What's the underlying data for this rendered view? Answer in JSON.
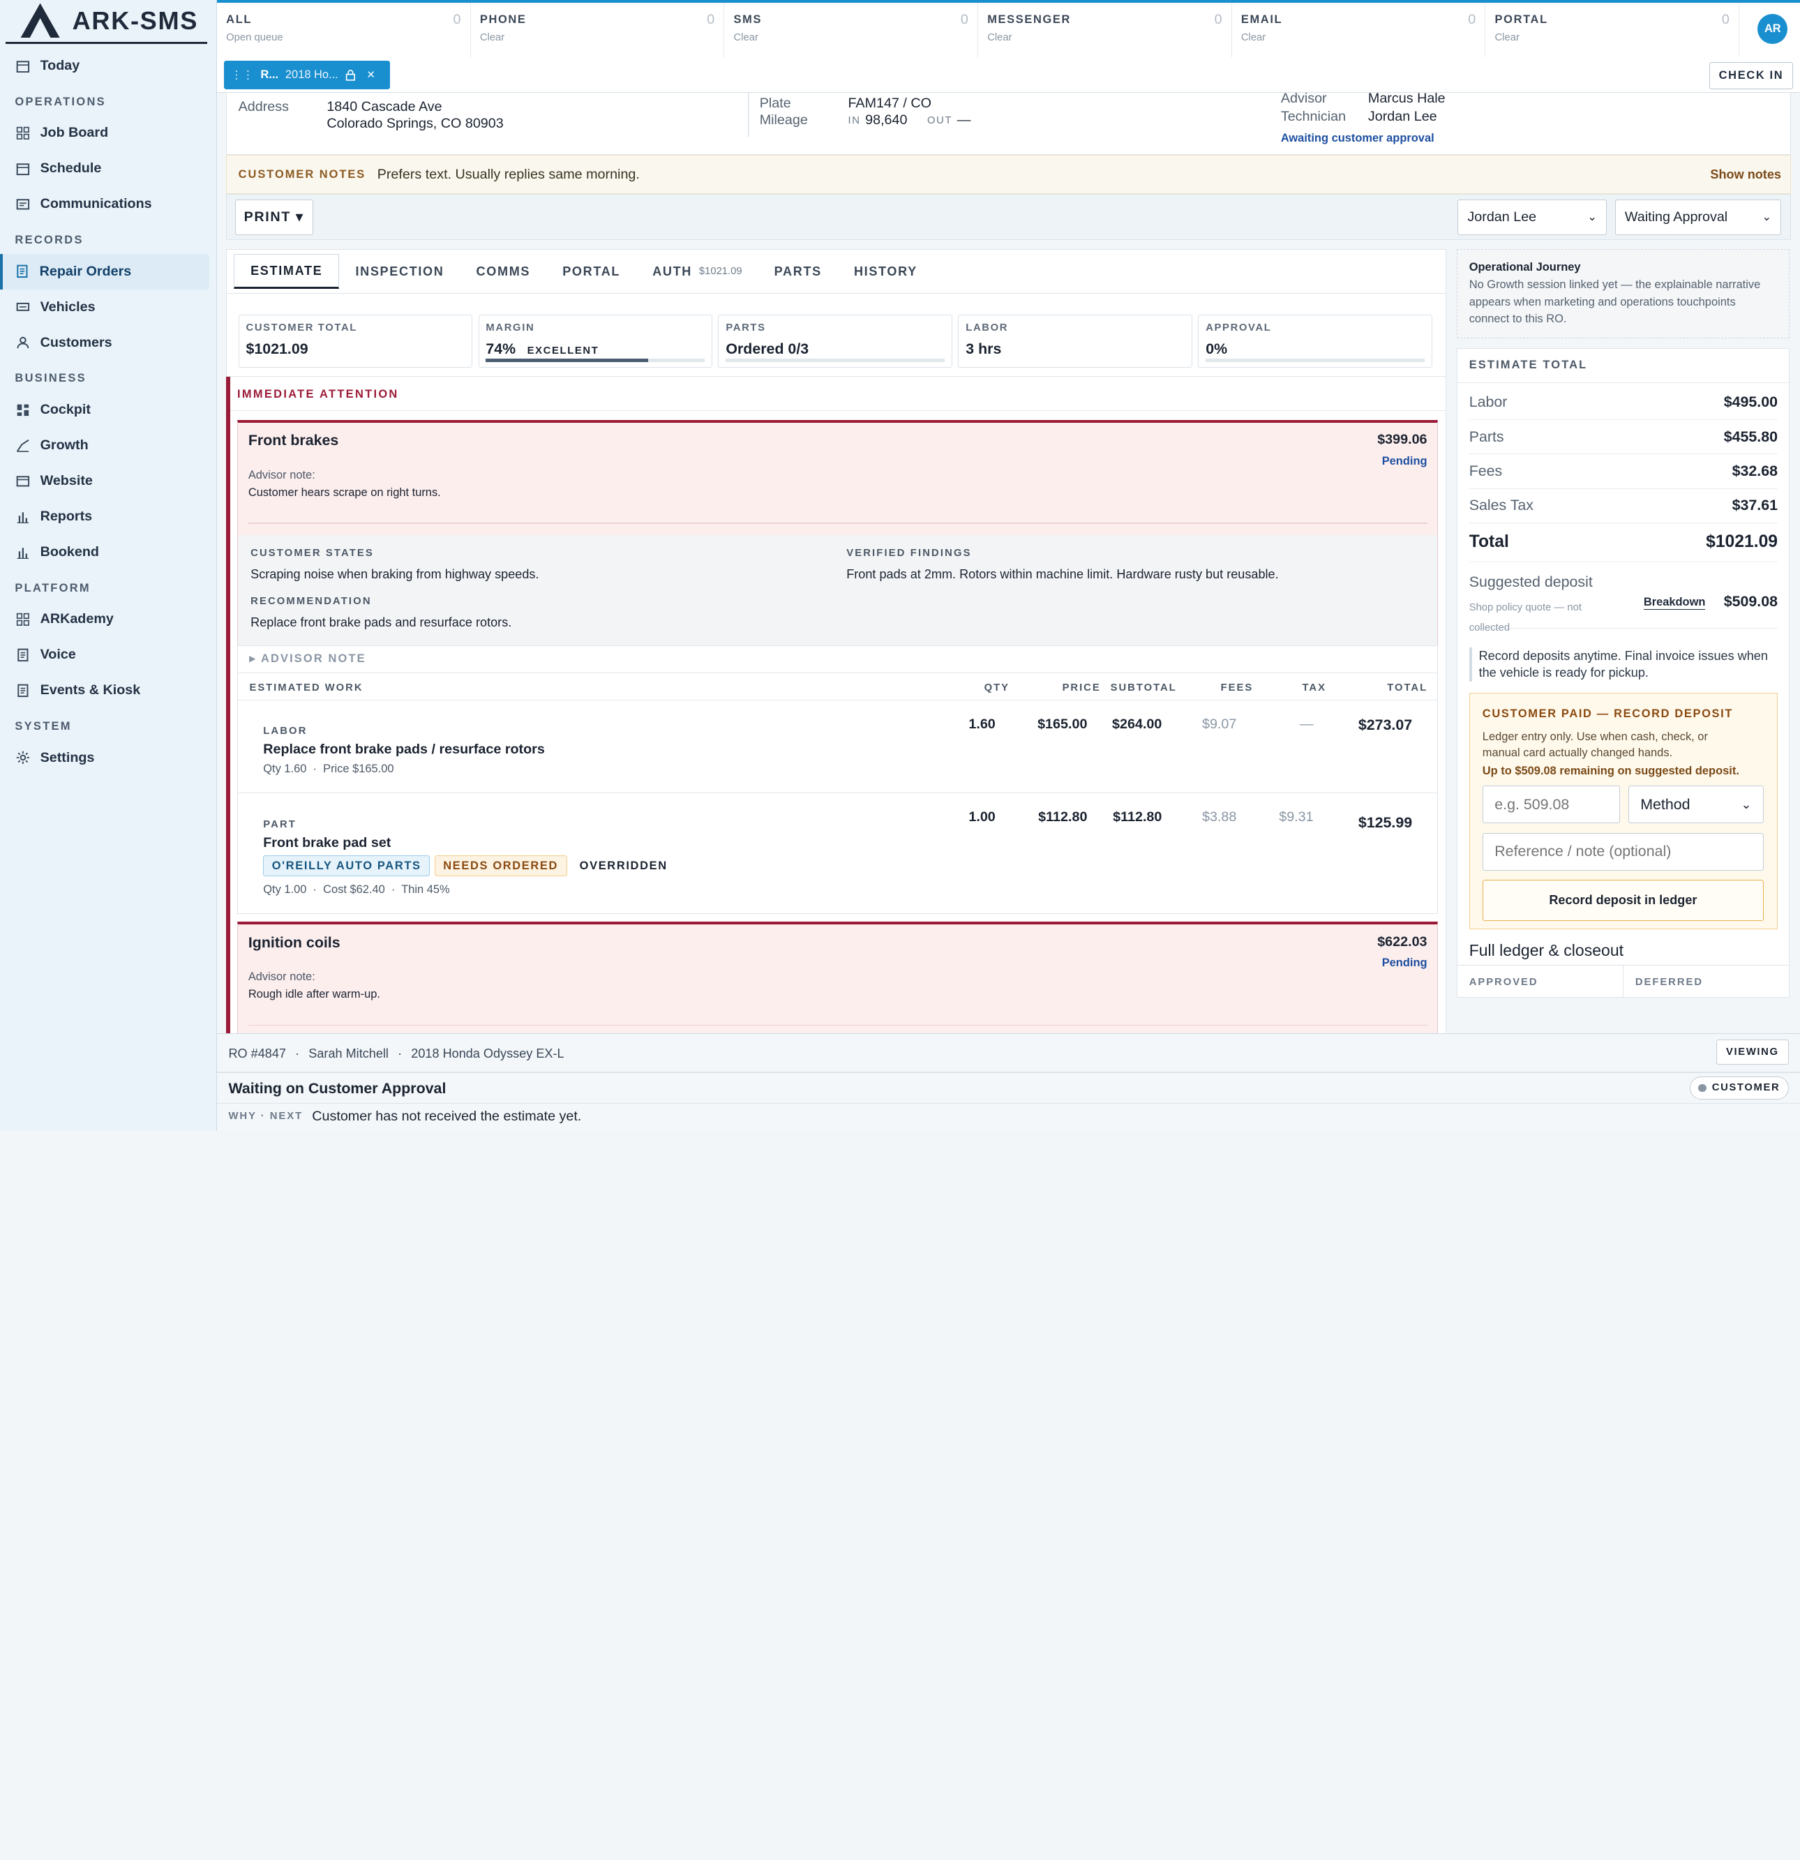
{
  "app": {
    "name": "ARK-SMS"
  },
  "sidebar": {
    "top_item": {
      "label": "Today",
      "icon": "calendar-icon"
    },
    "sections": [
      {
        "title": "OPERATIONS",
        "items": [
          {
            "label": "Job Board",
            "icon": "grid-icon"
          },
          {
            "label": "Schedule",
            "icon": "calendar-icon"
          },
          {
            "label": "Communications",
            "icon": "message-icon"
          }
        ]
      },
      {
        "title": "RECORDS",
        "items": [
          {
            "label": "Repair Orders",
            "icon": "document-icon",
            "active": true
          },
          {
            "label": "Vehicles",
            "icon": "car-icon"
          },
          {
            "label": "Customers",
            "icon": "user-icon"
          }
        ]
      },
      {
        "title": "BUSINESS",
        "items": [
          {
            "label": "Cockpit",
            "icon": "dashboard-icon"
          },
          {
            "label": "Growth",
            "icon": "trend-icon"
          },
          {
            "label": "Website",
            "icon": "browser-icon"
          },
          {
            "label": "Reports",
            "icon": "bar-chart-icon"
          },
          {
            "label": "Bookend",
            "icon": "bar-chart-icon"
          }
        ]
      },
      {
        "title": "PLATFORM",
        "items": [
          {
            "label": "ARKademy",
            "icon": "grid-icon"
          },
          {
            "label": "Voice",
            "icon": "document-icon"
          },
          {
            "label": "Events & Kiosk",
            "icon": "document-icon"
          }
        ]
      },
      {
        "title": "SYSTEM",
        "items": [
          {
            "label": "Settings",
            "icon": "gear-icon"
          }
        ]
      }
    ]
  },
  "queue_tabs": [
    {
      "label": "ALL",
      "sub": "Open queue",
      "count": "0"
    },
    {
      "label": "PHONE",
      "sub": "Clear",
      "count": "0"
    },
    {
      "label": "SMS",
      "sub": "Clear",
      "count": "0"
    },
    {
      "label": "MESSENGER",
      "sub": "Clear",
      "count": "0"
    },
    {
      "label": "EMAIL",
      "sub": "Clear",
      "count": "0"
    },
    {
      "label": "PORTAL",
      "sub": "Clear",
      "count": "0"
    }
  ],
  "user": {
    "initials": "AR"
  },
  "ro_chip": {
    "label": "R...",
    "vehicle": "2018 Ho...",
    "close": "×"
  },
  "checkin_label": "CHECK IN",
  "info": {
    "address_label": "Address",
    "address_line1": "1840 Cascade Ave",
    "address_line2": "Colorado Springs, CO 80903",
    "plate_label": "Plate",
    "plate": "FAM147 / CO",
    "mileage_label": "Mileage",
    "in_label": "IN",
    "mileage_in": "98,640",
    "out_label": "OUT",
    "mileage_out": "—",
    "advisor_label": "Advisor",
    "advisor": "Marcus Hale",
    "tech_label": "Technician",
    "tech": "Jordan Lee",
    "status": "Awaiting customer approval"
  },
  "notes": {
    "label": "CUSTOMER NOTES",
    "text": "Prefers text. Usually replies same morning.",
    "toggle": "Show notes"
  },
  "controls": {
    "print": "PRINT ▾",
    "tech_select": "Jordan Lee",
    "status_select": "Waiting Approval"
  },
  "tabs": [
    {
      "label": "ESTIMATE"
    },
    {
      "label": "INSPECTION"
    },
    {
      "label": "COMMS"
    },
    {
      "label": "PORTAL"
    },
    {
      "label": "AUTH",
      "amount": "$1021.09"
    },
    {
      "label": "PARTS"
    },
    {
      "label": "HISTORY"
    }
  ],
  "metrics": [
    {
      "label": "CUSTOMER TOTAL",
      "value": "$1021.09"
    },
    {
      "label": "MARGIN",
      "value": "74%",
      "badge": "EXCELLENT",
      "fill": 0.74
    },
    {
      "label": "PARTS",
      "value": "Ordered 0/3",
      "fill": 0
    },
    {
      "label": "LABOR",
      "value": "3 hrs"
    },
    {
      "label": "APPROVAL",
      "value": "0%",
      "fill": 0
    }
  ],
  "section_title": "IMMEDIATE ATTENTION",
  "jobs": [
    {
      "title": "Front brakes",
      "price": "$399.06",
      "status": "Pending",
      "note_label": "Advisor note:",
      "note": "Customer hears scrape on right turns.",
      "states_label": "CUSTOMER STATES",
      "states": "Scraping noise when braking from highway speeds.",
      "findings_label": "VERIFIED FINDINGS",
      "findings": "Front pads at 2mm. Rotors within machine limit. Hardware rusty but reusable.",
      "rec_label": "RECOMMENDATION",
      "rec": "Replace front brake pads and resurface rotors.",
      "advisor_note_toggle": "▸ ADVISOR NOTE"
    },
    {
      "title": "Ignition coils",
      "price": "$622.03",
      "status": "Pending",
      "note_label": "Advisor note:",
      "note": "Rough idle after warm-up."
    }
  ],
  "work_table": {
    "headers": {
      "name": "ESTIMATED WORK",
      "qty": "QTY",
      "price": "PRICE",
      "subtotal": "SUBTOTAL",
      "fees": "FEES",
      "tax": "TAX",
      "total": "TOTAL"
    },
    "rows": [
      {
        "type": "LABOR",
        "name": "Replace front brake pads / resurface rotors",
        "detail": "Qty 1.60  ·  Price $165.00",
        "qty": "1.60",
        "price": "$165.00",
        "subtotal": "$264.00",
        "fees": "$9.07",
        "tax": "—",
        "total": "$273.07"
      },
      {
        "type": "PART",
        "name": "Front brake pad set",
        "detail": "Qty 1.00  ·  Cost $62.40  ·  Thin 45%",
        "qty": "1.00",
        "price": "$112.80",
        "subtotal": "$112.80",
        "fees": "$3.88",
        "tax": "$9.31",
        "total": "$125.99",
        "chips": [
          "O'REILLY AUTO PARTS",
          "NEEDS ORDERED",
          "OVERRIDDEN"
        ]
      }
    ]
  },
  "journey": {
    "title": "Operational Journey",
    "text": "No Growth session linked yet — the explainable narrative appears when marketing and operations touchpoints connect to this RO."
  },
  "estimate_total": {
    "header": "ESTIMATE TOTAL",
    "lines": [
      {
        "label": "Labor",
        "value": "$495.00"
      },
      {
        "label": "Parts",
        "value": "$455.80"
      },
      {
        "label": "Fees",
        "value": "$32.68"
      },
      {
        "label": "Sales Tax",
        "value": "$37.61"
      }
    ],
    "total_label": "Total",
    "total": "$1021.09",
    "deposit_label": "Suggested deposit",
    "deposit_sub": "Shop policy quote — not collected",
    "breakdown": "Breakdown",
    "deposit": "$509.08",
    "info": "Record deposits anytime. Final invoice issues when the vehicle is ready for pickup.",
    "paid_title": "CUSTOMER PAID — RECORD DEPOSIT",
    "paid_text": "Ledger entry only. Use when cash, check, or manual card actually changed hands.",
    "paid_remaining": "Up to $509.08 remaining on suggested deposit.",
    "amount_placeholder": "e.g. 509.08",
    "method": "Method",
    "ref_placeholder": "Reference / note (optional)",
    "record_button": "Record deposit in ledger",
    "full_ledger": "Full ledger & closeout",
    "approved": "APPROVED",
    "deferred": "DEFERRED"
  },
  "statusbar": {
    "ro": "RO #4847",
    "customer": "Sarah Mitchell",
    "vehicle": "2018 Honda Odyssey EX-L",
    "viewing": "VIEWING",
    "title": "Waiting on Customer Approval",
    "owner": "CUSTOMER",
    "why_label": "WHY · NEXT",
    "why": "Customer has not received the estimate yet."
  },
  "colors": {
    "accent": "#1a8fd0",
    "alert": "#9a1b37",
    "pending": "#1d4fa0"
  }
}
